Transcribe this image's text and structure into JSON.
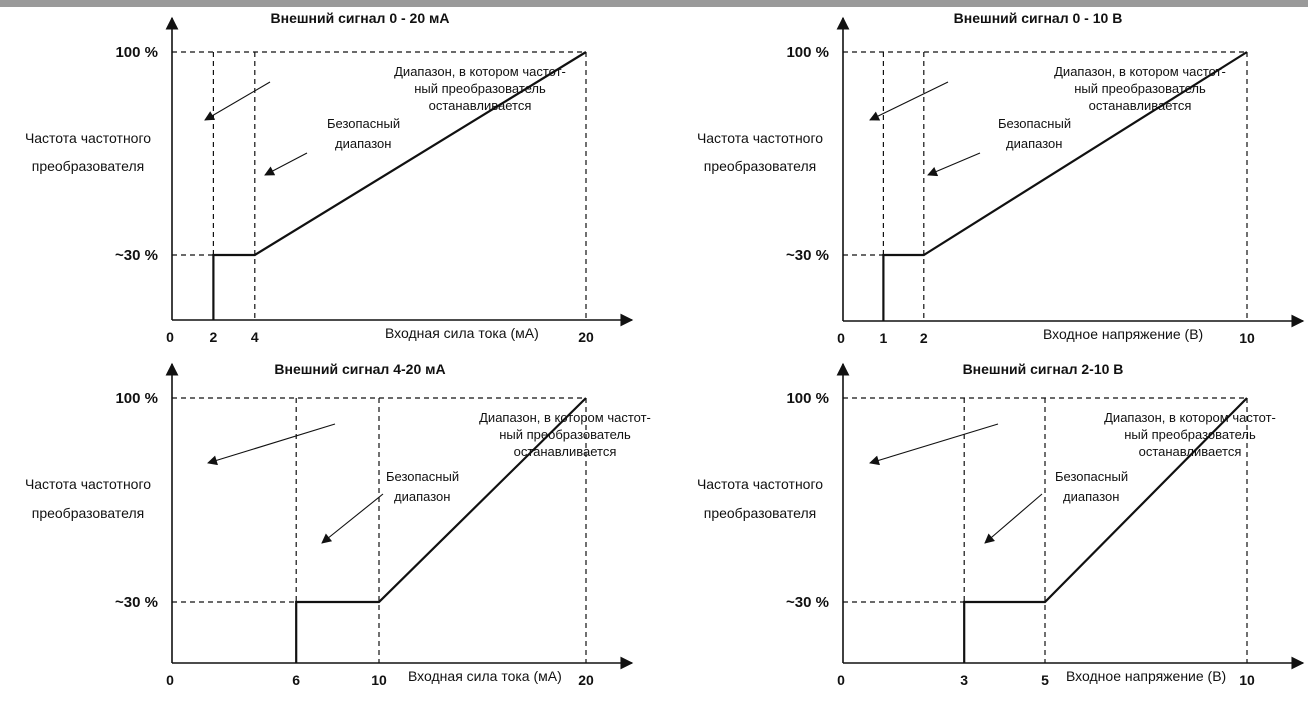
{
  "colors": {
    "line": "#111111",
    "top_bar": "#9a9a9a",
    "background": "#ffffff"
  },
  "notes": {
    "stop_range": [
      "Диапазон, в котором частот-",
      "ный преобразователь",
      "останавливается"
    ],
    "safe_range": [
      "Безопасный",
      "диапазон"
    ]
  },
  "ylabel_lines": [
    "Частота частотного",
    "преобразователя"
  ],
  "ytick_labels": {
    "top": "100 %",
    "mid": "~30 %"
  },
  "chart_data": [
    {
      "type": "line",
      "title": "Внешний сигнал 0 - 20 мА",
      "xlabel": "Входная сила тока (мА)",
      "ylabel": "Частота частотного преобразователя",
      "xlim": [
        0,
        20
      ],
      "ylim": [
        0,
        100
      ],
      "x_ticks": [
        "0",
        "2",
        "4",
        "20"
      ],
      "y_ticks": [
        "~30 %",
        "100 %"
      ],
      "stop_range": [
        0,
        2
      ],
      "safe_range": [
        2,
        4
      ],
      "series": [
        {
          "x": [
            2,
            2,
            4,
            20
          ],
          "y": [
            0,
            30,
            30,
            100
          ]
        }
      ]
    },
    {
      "type": "line",
      "title": "Внешний сигнал 0 - 10 В",
      "xlabel": "Входное напряжение (В)",
      "ylabel": "Частота частотного преобразователя",
      "xlim": [
        0,
        10
      ],
      "ylim": [
        0,
        100
      ],
      "x_ticks": [
        "0",
        "1",
        "2",
        "10"
      ],
      "y_ticks": [
        "~30 %",
        "100 %"
      ],
      "stop_range": [
        0,
        1
      ],
      "safe_range": [
        1,
        2
      ],
      "series": [
        {
          "x": [
            1,
            1,
            2,
            10
          ],
          "y": [
            0,
            30,
            30,
            100
          ]
        }
      ]
    },
    {
      "type": "line",
      "title": "Внешний сигнал 4-20 мА",
      "xlabel": "Входная сила тока (мА)",
      "ylabel": "Частота частотного преобразователя",
      "xlim": [
        0,
        20
      ],
      "ylim": [
        0,
        100
      ],
      "x_ticks": [
        "0",
        "6",
        "10",
        "20"
      ],
      "y_ticks": [
        "~30 %",
        "100 %"
      ],
      "stop_range": [
        0,
        6
      ],
      "safe_range": [
        6,
        10
      ],
      "series": [
        {
          "x": [
            6,
            6,
            10,
            20
          ],
          "y": [
            0,
            30,
            30,
            100
          ]
        }
      ]
    },
    {
      "type": "line",
      "title": "Внешний сигнал 2-10 В",
      "xlabel": "Входное напряжение (В)",
      "ylabel": "Частота частотного преобразователя",
      "xlim": [
        0,
        10
      ],
      "ylim": [
        0,
        100
      ],
      "x_ticks": [
        "0",
        "3",
        "5",
        "10"
      ],
      "y_ticks": [
        "~30 %",
        "100 %"
      ],
      "stop_range": [
        0,
        3
      ],
      "safe_range": [
        3,
        5
      ],
      "series": [
        {
          "x": [
            3,
            3,
            5,
            10
          ],
          "y": [
            0,
            30,
            30,
            100
          ]
        }
      ]
    }
  ]
}
